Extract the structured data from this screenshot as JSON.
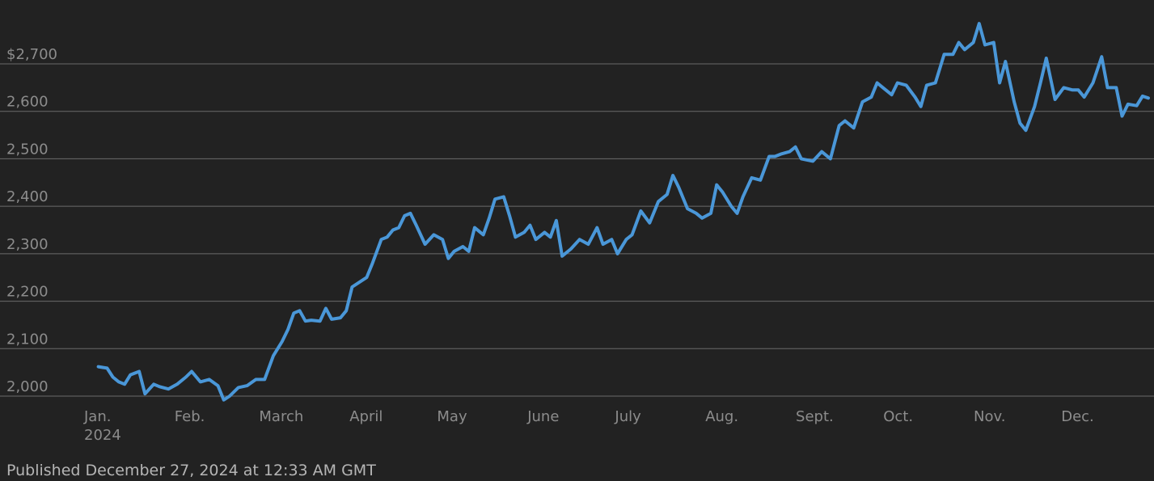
{
  "chart_data": {
    "type": "line",
    "title": "",
    "xlabel": "",
    "ylabel": "",
    "ylim": [
      2000,
      2700
    ],
    "xlim": [
      "2024-01-01",
      "2024-12-27"
    ],
    "grid": true,
    "legend": "none",
    "y_ticks": [
      "$2,700",
      "2,600",
      "2,500",
      "2,400",
      "2,300",
      "2,200",
      "2,100",
      "2,000"
    ],
    "y_tick_values": [
      2700,
      2600,
      2500,
      2400,
      2300,
      2200,
      2100,
      2000
    ],
    "x_ticks": [
      {
        "label": "Jan.",
        "sublabel": "2024",
        "date": "2024-01-01"
      },
      {
        "label": "Feb.",
        "sublabel": "",
        "date": "2024-02-01"
      },
      {
        "label": "March",
        "sublabel": "",
        "date": "2024-03-01"
      },
      {
        "label": "April",
        "sublabel": "",
        "date": "2024-04-01"
      },
      {
        "label": "May",
        "sublabel": "",
        "date": "2024-05-01"
      },
      {
        "label": "June",
        "sublabel": "",
        "date": "2024-06-01"
      },
      {
        "label": "July",
        "sublabel": "",
        "date": "2024-07-01"
      },
      {
        "label": "Aug.",
        "sublabel": "",
        "date": "2024-08-01"
      },
      {
        "label": "Sept.",
        "sublabel": "",
        "date": "2024-09-01"
      },
      {
        "label": "Oct.",
        "sublabel": "",
        "date": "2024-10-01"
      },
      {
        "label": "Nov.",
        "sublabel": "",
        "date": "2024-11-01"
      },
      {
        "label": "Dec.",
        "sublabel": "",
        "date": "2024-12-01"
      }
    ],
    "series": [
      {
        "color": "#4a97d8",
        "points": [
          [
            "2024-01-02",
            2062
          ],
          [
            "2024-01-05",
            2059
          ],
          [
            "2024-01-07",
            2040
          ],
          [
            "2024-01-09",
            2030
          ],
          [
            "2024-01-11",
            2025
          ],
          [
            "2024-01-13",
            2045
          ],
          [
            "2024-01-16",
            2052
          ],
          [
            "2024-01-18",
            2005
          ],
          [
            "2024-01-21",
            2025
          ],
          [
            "2024-01-23",
            2020
          ],
          [
            "2024-01-26",
            2015
          ],
          [
            "2024-01-29",
            2025
          ],
          [
            "2024-02-01",
            2040
          ],
          [
            "2024-02-03",
            2052
          ],
          [
            "2024-02-06",
            2030
          ],
          [
            "2024-02-09",
            2035
          ],
          [
            "2024-02-12",
            2022
          ],
          [
            "2024-02-14",
            1992
          ],
          [
            "2024-02-16",
            2000
          ],
          [
            "2024-02-19",
            2018
          ],
          [
            "2024-02-22",
            2022
          ],
          [
            "2024-02-25",
            2035
          ],
          [
            "2024-02-28",
            2035
          ],
          [
            "2024-03-02",
            2085
          ],
          [
            "2024-03-05",
            2115
          ],
          [
            "2024-03-07",
            2140
          ],
          [
            "2024-03-09",
            2175
          ],
          [
            "2024-03-11",
            2180
          ],
          [
            "2024-03-13",
            2158
          ],
          [
            "2024-03-15",
            2160
          ],
          [
            "2024-03-18",
            2158
          ],
          [
            "2024-03-20",
            2185
          ],
          [
            "2024-03-22",
            2162
          ],
          [
            "2024-03-25",
            2165
          ],
          [
            "2024-03-27",
            2180
          ],
          [
            "2024-03-29",
            2230
          ],
          [
            "2024-04-03",
            2250
          ],
          [
            "2024-04-05",
            2280
          ],
          [
            "2024-04-08",
            2330
          ],
          [
            "2024-04-10",
            2335
          ],
          [
            "2024-04-12",
            2350
          ],
          [
            "2024-04-14",
            2355
          ],
          [
            "2024-04-16",
            2380
          ],
          [
            "2024-04-18",
            2385
          ],
          [
            "2024-04-20",
            2360
          ],
          [
            "2024-04-23",
            2320
          ],
          [
            "2024-04-26",
            2340
          ],
          [
            "2024-04-29",
            2330
          ],
          [
            "2024-05-01",
            2290
          ],
          [
            "2024-05-03",
            2305
          ],
          [
            "2024-05-06",
            2315
          ],
          [
            "2024-05-08",
            2305
          ],
          [
            "2024-05-10",
            2355
          ],
          [
            "2024-05-13",
            2340
          ],
          [
            "2024-05-15",
            2375
          ],
          [
            "2024-05-17",
            2415
          ],
          [
            "2024-05-20",
            2420
          ],
          [
            "2024-05-22",
            2380
          ],
          [
            "2024-05-24",
            2335
          ],
          [
            "2024-05-27",
            2345
          ],
          [
            "2024-05-29",
            2360
          ],
          [
            "2024-05-31",
            2330
          ],
          [
            "2024-06-03",
            2345
          ],
          [
            "2024-06-05",
            2335
          ],
          [
            "2024-06-07",
            2370
          ],
          [
            "2024-06-09",
            2295
          ],
          [
            "2024-06-12",
            2310
          ],
          [
            "2024-06-15",
            2330
          ],
          [
            "2024-06-18",
            2320
          ],
          [
            "2024-06-21",
            2355
          ],
          [
            "2024-06-23",
            2320
          ],
          [
            "2024-06-26",
            2330
          ],
          [
            "2024-06-28",
            2300
          ],
          [
            "2024-07-01",
            2330
          ],
          [
            "2024-07-03",
            2340
          ],
          [
            "2024-07-06",
            2390
          ],
          [
            "2024-07-09",
            2365
          ],
          [
            "2024-07-12",
            2410
          ],
          [
            "2024-07-15",
            2425
          ],
          [
            "2024-07-17",
            2465
          ],
          [
            "2024-07-19",
            2440
          ],
          [
            "2024-07-22",
            2395
          ],
          [
            "2024-07-25",
            2385
          ],
          [
            "2024-07-27",
            2375
          ],
          [
            "2024-07-30",
            2385
          ],
          [
            "2024-08-01",
            2445
          ],
          [
            "2024-08-03",
            2430
          ],
          [
            "2024-08-06",
            2400
          ],
          [
            "2024-08-08",
            2385
          ],
          [
            "2024-08-10",
            2420
          ],
          [
            "2024-08-13",
            2460
          ],
          [
            "2024-08-16",
            2455
          ],
          [
            "2024-08-19",
            2505
          ],
          [
            "2024-08-21",
            2505
          ],
          [
            "2024-08-23",
            2510
          ],
          [
            "2024-08-26",
            2515
          ],
          [
            "2024-08-28",
            2525
          ],
          [
            "2024-08-30",
            2500
          ],
          [
            "2024-09-03",
            2495
          ],
          [
            "2024-09-06",
            2515
          ],
          [
            "2024-09-09",
            2500
          ],
          [
            "2024-09-12",
            2570
          ],
          [
            "2024-09-14",
            2580
          ],
          [
            "2024-09-17",
            2565
          ],
          [
            "2024-09-20",
            2620
          ],
          [
            "2024-09-23",
            2630
          ],
          [
            "2024-09-25",
            2660
          ],
          [
            "2024-09-27",
            2650
          ],
          [
            "2024-09-30",
            2635
          ],
          [
            "2024-10-02",
            2660
          ],
          [
            "2024-10-05",
            2655
          ],
          [
            "2024-10-08",
            2630
          ],
          [
            "2024-10-10",
            2610
          ],
          [
            "2024-10-12",
            2655
          ],
          [
            "2024-10-15",
            2660
          ],
          [
            "2024-10-18",
            2720
          ],
          [
            "2024-10-21",
            2720
          ],
          [
            "2024-10-23",
            2745
          ],
          [
            "2024-10-25",
            2730
          ],
          [
            "2024-10-28",
            2745
          ],
          [
            "2024-10-30",
            2785
          ],
          [
            "2024-11-01",
            2740
          ],
          [
            "2024-11-04",
            2745
          ],
          [
            "2024-11-06",
            2660
          ],
          [
            "2024-11-08",
            2705
          ],
          [
            "2024-11-11",
            2620
          ],
          [
            "2024-11-13",
            2575
          ],
          [
            "2024-11-15",
            2560
          ],
          [
            "2024-11-18",
            2610
          ],
          [
            "2024-11-20",
            2660
          ],
          [
            "2024-11-22",
            2712
          ],
          [
            "2024-11-25",
            2625
          ],
          [
            "2024-11-28",
            2650
          ],
          [
            "2024-12-01",
            2645
          ],
          [
            "2024-12-03",
            2645
          ],
          [
            "2024-12-05",
            2630
          ],
          [
            "2024-12-08",
            2660
          ],
          [
            "2024-12-11",
            2715
          ],
          [
            "2024-12-13",
            2650
          ],
          [
            "2024-12-16",
            2650
          ],
          [
            "2024-12-18",
            2590
          ],
          [
            "2024-12-20",
            2615
          ],
          [
            "2024-12-23",
            2612
          ],
          [
            "2024-12-25",
            2632
          ],
          [
            "2024-12-27",
            2628
          ]
        ]
      }
    ]
  },
  "footnote": "Published December 27, 2024 at 12:33 AM GMT"
}
